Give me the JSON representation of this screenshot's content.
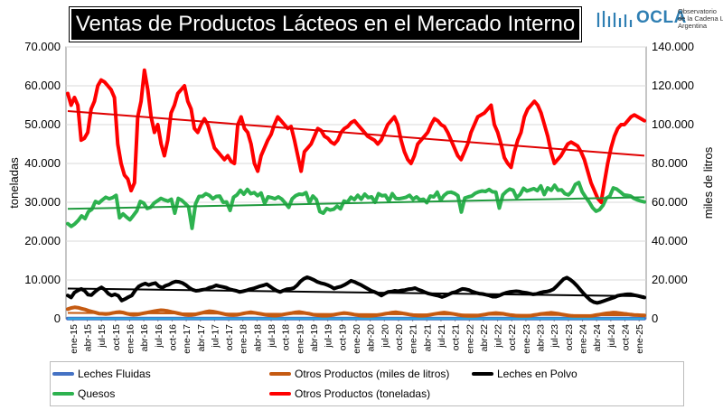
{
  "title": "Ventas de Productos Lácteos en el Mercado Interno",
  "logo": {
    "word": "OCLA",
    "line1": "Observatorio",
    "line2": "de la Cadena Láctea",
    "line3": "Argentina",
    "color": "#2f7fb3"
  },
  "chart_data": {
    "type": "line",
    "ylabel_left": "toneladas",
    "ylabel_right": "miles de litros",
    "ylim_left": [
      0,
      70000
    ],
    "ylim_right": [
      0,
      140000
    ],
    "yticks_left": [
      "0",
      "10.000",
      "20.000",
      "30.000",
      "40.000",
      "50.000",
      "60.000",
      "70.000"
    ],
    "yticks_right": [
      "0",
      "20.000",
      "40.000",
      "60.000",
      "80.000",
      "100.000",
      "120.000",
      "140.000"
    ],
    "xticks": [
      "ene-15",
      "abr-15",
      "jul-15",
      "oct-15",
      "ene-16",
      "abr-16",
      "jul-16",
      "oct-16",
      "ene-17",
      "abr-17",
      "jul-17",
      "oct-17",
      "ene-18",
      "abr-18",
      "jul-18",
      "oct-18",
      "ene-19",
      "abr-19",
      "jul-19",
      "oct-19",
      "ene-20",
      "abr-20",
      "jul-20",
      "oct-20",
      "ene-21",
      "abr-21",
      "jul-21",
      "oct-21",
      "ene-22",
      "abr-22",
      "jul-22",
      "oct-22",
      "ene-23",
      "abr-23",
      "jul-23",
      "oct-23",
      "ene-24",
      "abr-24",
      "jul-24",
      "oct-24",
      "ene-25"
    ],
    "grid": true,
    "legend_position": "bottom",
    "series": [
      {
        "name": "Leches Fluidas",
        "axis": "right",
        "color": "#4472c4",
        "values": [
          112,
          110,
          116,
          120,
          121,
          124,
          126,
          127,
          125,
          120,
          116,
          113,
          116,
          116,
          115,
          118,
          118,
          116,
          118,
          120,
          122,
          124,
          123,
          123,
          118,
          114,
          113,
          110,
          105,
          108,
          116,
          114,
          112,
          107,
          106,
          104,
          112,
          110,
          113,
          115,
          119,
          121,
          116,
          112,
          107,
          104,
          100,
          106,
          110,
          115,
          116,
          115,
          117,
          114,
          112,
          108,
          103,
          98,
          96,
          104,
          108,
          114,
          114,
          110,
          112,
          109,
          103,
          100,
          98,
          95,
          101,
          104,
          108,
          105,
          104,
          103,
          100,
          98,
          92,
          87,
          96,
          104,
          110,
          115,
          112,
          120,
          127,
          122,
          120,
          118,
          114,
          110,
          106,
          101,
          98,
          96,
          94,
          92,
          95,
          97,
          93,
          90,
          86,
          88,
          85,
          82,
          93,
          101,
          98,
          100,
          104,
          107,
          106,
          105,
          103,
          102,
          100,
          98,
          97,
          94,
          92,
          89,
          94,
          97,
          96,
          92,
          90,
          88,
          86,
          84,
          94,
          98,
          100,
          99,
          97,
          95,
          93,
          91,
          90,
          87,
          85,
          92,
          95,
          97,
          98,
          96,
          94,
          91,
          88,
          86,
          84,
          92,
          95,
          94,
          99,
          100,
          97,
          94,
          92,
          89,
          87,
          86,
          84,
          82,
          80,
          76,
          73,
          72,
          80,
          85,
          89,
          91,
          100,
          104,
          104,
          88,
          86,
          84,
          82,
          85,
          88,
          93,
          96
        ],
        "trend": [
          118,
          86
        ]
      },
      {
        "name": "Quesos",
        "axis": "left",
        "color": "#2db24f",
        "values": [
          24500,
          23800,
          24400,
          25300,
          26500,
          25800,
          27600,
          28200,
          30200,
          29800,
          30600,
          31300,
          30900,
          31200,
          31800,
          26000,
          27000,
          26200,
          25500,
          26600,
          27800,
          30200,
          29800,
          28400,
          28700,
          29800,
          30400,
          31000,
          30600,
          30300,
          30800,
          27200,
          31000,
          30500,
          29700,
          28800,
          23300,
          29600,
          31500,
          31500,
          32200,
          31800,
          30900,
          31500,
          31600,
          30000,
          30100,
          27900,
          31300,
          31900,
          33100,
          32100,
          33300,
          32200,
          32500,
          31700,
          32400,
          29700,
          31400,
          31200,
          30900,
          31400,
          30800,
          29800,
          28700,
          30900,
          31700,
          32100,
          32000,
          32500,
          29900,
          31600,
          30700,
          27600,
          27200,
          28400,
          28000,
          28200,
          29000,
          28300,
          30300,
          30000,
          31300,
          30700,
          31800,
          30800,
          32100,
          31200,
          31400,
          30000,
          32200,
          31700,
          31800,
          30300,
          32200,
          31000,
          30900,
          31100,
          31300,
          31800,
          30800,
          31400,
          30600,
          30800,
          29900,
          31600,
          31400,
          32600,
          30500,
          31800,
          32500,
          32600,
          32300,
          31700,
          27500,
          31100,
          31400,
          31600,
          32300,
          32700,
          32900,
          32800,
          33300,
          32700,
          32600,
          28500,
          31900,
          32800,
          33400,
          33100,
          31200,
          32000,
          33600,
          32900,
          33200,
          33500,
          33000,
          34200,
          32000,
          33700,
          33100,
          34400,
          33100,
          33200,
          32200,
          31900,
          32800,
          34600,
          35100,
          32700,
          31300,
          30100,
          28600,
          27700,
          28100,
          29200,
          31100,
          31600,
          33700,
          33400,
          32700,
          31900,
          31800,
          31600,
          31000,
          30600,
          30300,
          30100
        ],
        "trend": [
          28300,
          31300
        ]
      },
      {
        "name": "Otros Productos (toneladas)",
        "axis": "left",
        "color": "#ff0000",
        "values": [
          58000,
          55000,
          57000,
          55000,
          46000,
          46500,
          48000,
          54000,
          56000,
          60000,
          61500,
          61000,
          60000,
          59000,
          57000,
          45000,
          40000,
          37000,
          36000,
          33000,
          35000,
          52000,
          56000,
          64000,
          59000,
          52000,
          48000,
          50000,
          45000,
          42000,
          46000,
          53000,
          55000,
          58000,
          59000,
          60000,
          56000,
          54000,
          49000,
          48000,
          50000,
          51500,
          50000,
          47000,
          44000,
          43000,
          42000,
          41000,
          42000,
          40500,
          40000,
          50000,
          52000,
          49000,
          48000,
          45000,
          40000,
          38000,
          42000,
          44000,
          46000,
          47500,
          50000,
          52000,
          51000,
          50000,
          49000,
          49500,
          46000,
          42000,
          38000,
          43000,
          44000,
          45000,
          47000,
          49000,
          48500,
          47000,
          46500,
          45500,
          45000,
          46000,
          48000,
          49000,
          49500,
          50500,
          51000,
          50000,
          49000,
          48000,
          47000,
          46500,
          46000,
          45000,
          46000,
          48000,
          50000,
          51000,
          52000,
          50000,
          46000,
          43000,
          41000,
          40000,
          42000,
          45000,
          46000,
          47000,
          48000,
          50000,
          51500,
          51000,
          50000,
          49500,
          48000,
          46000,
          44000,
          42000,
          41000,
          43000,
          45000,
          48000,
          50000,
          52000,
          52500,
          53000,
          54000,
          55000,
          50000,
          48000,
          45000,
          41500,
          40000,
          39000,
          43000,
          46000,
          48000,
          52000,
          54000,
          55000,
          56000,
          55000,
          53000,
          50000,
          47000,
          43000,
          40000,
          41000,
          42000,
          43500,
          45000,
          45500,
          45000,
          44500,
          43000,
          41000,
          38000,
          35000,
          33000,
          31000,
          30000,
          35000,
          40000,
          44000,
          47000,
          49000,
          50000,
          50000,
          51000,
          52000,
          52500,
          52000,
          51500,
          51000
        ],
        "trend": [
          53500,
          42000
        ]
      },
      {
        "name": "Leches en Polvo",
        "axis": "left",
        "color": "#000000",
        "values": [
          6000,
          5500,
          6800,
          7300,
          7700,
          7200,
          6200,
          6100,
          6900,
          7600,
          8100,
          7500,
          6500,
          6000,
          6300,
          5900,
          4700,
          5100,
          5600,
          6000,
          7300,
          8300,
          8800,
          9100,
          8700,
          9000,
          9200,
          8400,
          8000,
          8500,
          8800,
          9300,
          9600,
          9500,
          9200,
          8700,
          8000,
          7500,
          7200,
          7300,
          7500,
          7600,
          8000,
          8200,
          8600,
          8400,
          8200,
          8000,
          7600,
          7400,
          7200,
          6900,
          7100,
          7300,
          7600,
          7800,
          8100,
          8400,
          8600,
          8900,
          8300,
          7700,
          7200,
          6900,
          7300,
          7600,
          7700,
          7900,
          8600,
          9600,
          10300,
          10700,
          10400,
          10000,
          9500,
          9200,
          9000,
          8700,
          8300,
          7800,
          8100,
          8300,
          8700,
          9200,
          9800,
          9500,
          9100,
          8700,
          8200,
          7700,
          7200,
          6900,
          6500,
          6000,
          6500,
          6900,
          7000,
          7200,
          7100,
          7300,
          7400,
          7600,
          7700,
          7900,
          7500,
          7200,
          6800,
          6500,
          6300,
          6100,
          5900,
          5600,
          5900,
          6300,
          6700,
          6900,
          7300,
          7700,
          7600,
          7400,
          7000,
          6700,
          6500,
          6400,
          6200,
          6000,
          5700,
          5700,
          6000,
          6400,
          6700,
          6900,
          7000,
          7100,
          7000,
          6800,
          6700,
          6500,
          6300,
          6400,
          6700,
          6900,
          7000,
          7200,
          7600,
          8400,
          9300,
          10200,
          10600,
          10100,
          9400,
          8500,
          7500,
          6500,
          5600,
          4800,
          4300,
          4100,
          4300,
          4600,
          4900,
          5200,
          5500,
          5900,
          6100,
          6200,
          6300,
          6300,
          6100,
          5900,
          5700,
          5500
        ],
        "trend": [
          7800,
          5800
        ]
      },
      {
        "name": "Otros Productos (miles de litros)",
        "axis": "right",
        "color": "#c55a11",
        "values": [
          5000,
          5600,
          5900,
          5700,
          5200,
          4800,
          4200,
          3700,
          3200,
          2700,
          2600,
          2400,
          2600,
          3000,
          3300,
          3500,
          3200,
          2700,
          2300,
          2100,
          2200,
          2500,
          2900,
          3200,
          3600,
          3900,
          4200,
          4400,
          4300,
          4000,
          3600,
          3200,
          2800,
          2400,
          2100,
          1900,
          2000,
          2300,
          2700,
          3100,
          3600,
          3900,
          3700,
          3400,
          3000,
          2600,
          2200,
          2000,
          1900,
          2100,
          2400,
          2800,
          3100,
          3400,
          3100,
          2800,
          2500,
          2200,
          1900,
          1700,
          1600,
          1800,
          2100,
          2400,
          2700,
          3000,
          3300,
          3500,
          3200,
          2900,
          2600,
          2200,
          1900,
          1700,
          1500,
          1600,
          1800,
          2100,
          2400,
          2700,
          3000,
          2800,
          2500,
          2200,
          1900,
          1600,
          1400,
          1300,
          1500,
          1700,
          2000,
          2300,
          2600,
          2900,
          3200,
          3400,
          3100,
          2800,
          2500,
          2200,
          1900,
          1700,
          1500,
          1600,
          1800,
          2100,
          2400,
          2700,
          3000,
          3200,
          3000,
          2700,
          2400,
          2100,
          1800,
          1600,
          1400,
          1300,
          1500,
          1700,
          2000,
          2300,
          2600,
          2800,
          3000,
          2800,
          2600,
          2300,
          2000,
          1800,
          1600,
          1400,
          1300,
          1400,
          1600,
          1900,
          2200,
          2500,
          2700,
          2900,
          3100,
          2900,
          2600,
          2300,
          2000,
          1700,
          1500,
          1300,
          1100,
          1000,
          1100,
          1300,
          1600,
          1900,
          2200,
          2500,
          2800,
          3000,
          3200,
          3100,
          2900,
          2600,
          2400,
          2200,
          2000,
          1900,
          1800,
          1700
        ],
        "trend": [
          3000,
          1800
        ]
      }
    ],
    "legend": [
      {
        "name": "Leches Fluidas",
        "color": "#4472c4"
      },
      {
        "name": "Otros Productos (miles de litros)",
        "color": "#c55a11"
      },
      {
        "name": "Leches en Polvo",
        "color": "#000000"
      },
      {
        "name": "Quesos",
        "color": "#2db24f"
      },
      {
        "name": "Otros Productos (toneladas)",
        "color": "#ff0000"
      }
    ]
  }
}
